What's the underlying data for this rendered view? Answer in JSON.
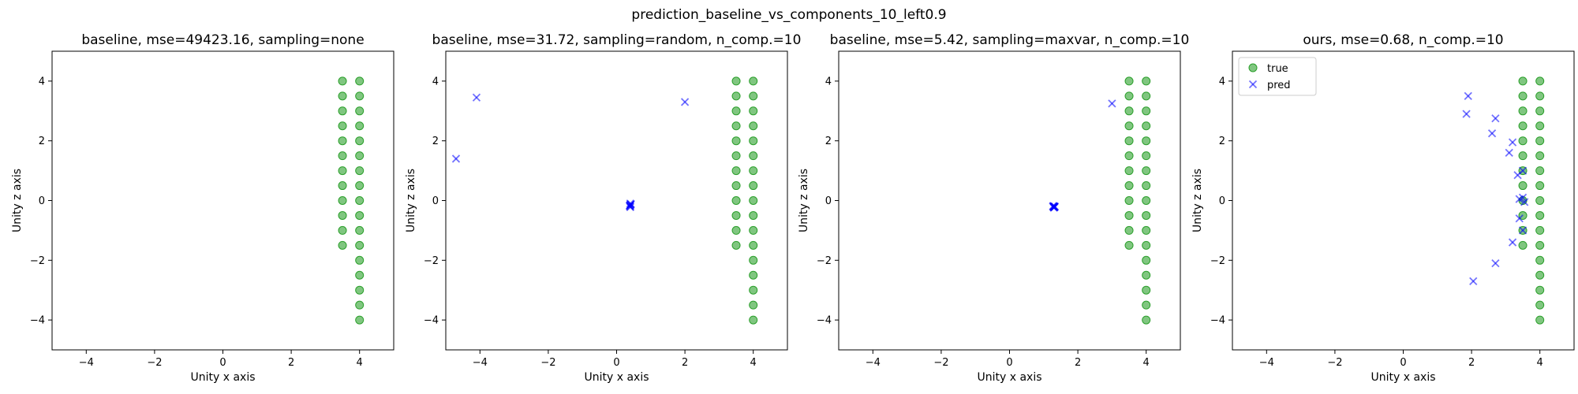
{
  "chart_data": {
    "suptitle": "prediction_baseline_vs_components_10_left0.9",
    "colors": {
      "true": "#2ca02c",
      "pred": "#0000ff"
    },
    "legend": {
      "placement": "upper-left",
      "panel": 3,
      "entries": [
        "true",
        "pred"
      ]
    },
    "panels": [
      {
        "type": "scatter",
        "title": "baseline, mse=49423.16, sampling=none",
        "xlabel": "Unity x axis",
        "ylabel": "Unity z axis",
        "xlim": [
          -5,
          5
        ],
        "ylim": [
          -5,
          5
        ],
        "xticks": [
          -4,
          -2,
          0,
          2,
          4
        ],
        "yticks": [
          -4,
          -2,
          0,
          2,
          4
        ],
        "pred_points": []
      },
      {
        "type": "scatter",
        "title": "baseline, mse=31.72, sampling=random, n_comp.=10",
        "xlabel": "Unity x axis",
        "ylabel": "Unity z axis",
        "xlim": [
          -5,
          5
        ],
        "ylim": [
          -5,
          5
        ],
        "xticks": [
          -4,
          -2,
          0,
          2,
          4
        ],
        "yticks": [
          -4,
          -2,
          0,
          2,
          4
        ],
        "pred_points": [
          [
            -4.1,
            3.45
          ],
          [
            -4.7,
            1.4
          ],
          [
            2.0,
            3.3
          ],
          [
            0.4,
            -0.1
          ],
          [
            0.4,
            -0.15
          ],
          [
            0.4,
            -0.2
          ],
          [
            0.42,
            -0.12
          ],
          [
            0.38,
            -0.18
          ],
          [
            0.4,
            -0.22
          ],
          [
            0.41,
            -0.14
          ],
          [
            0.39,
            -0.16
          ]
        ]
      },
      {
        "type": "scatter",
        "title": "baseline, mse=5.42, sampling=maxvar, n_comp.=10",
        "xlabel": "Unity x axis",
        "ylabel": "Unity z axis",
        "xlim": [
          -5,
          5
        ],
        "ylim": [
          -5,
          5
        ],
        "xticks": [
          -4,
          -2,
          0,
          2,
          4
        ],
        "yticks": [
          -4,
          -2,
          0,
          2,
          4
        ],
        "pred_points": [
          [
            3.0,
            3.25
          ],
          [
            1.3,
            -0.2
          ],
          [
            1.32,
            -0.22
          ],
          [
            1.28,
            -0.18
          ],
          [
            1.3,
            -0.24
          ],
          [
            1.31,
            -0.2
          ],
          [
            1.29,
            -0.21
          ],
          [
            1.3,
            -0.19
          ],
          [
            1.33,
            -0.2
          ],
          [
            1.27,
            -0.2
          ],
          [
            1.3,
            -0.23
          ]
        ]
      },
      {
        "type": "scatter",
        "title": "ours, mse=0.68, n_comp.=10",
        "xlabel": "Unity x axis",
        "ylabel": "Unity z axis",
        "xlim": [
          -5,
          5
        ],
        "ylim": [
          -5,
          5
        ],
        "xticks": [
          -4,
          -2,
          0,
          2,
          4
        ],
        "yticks": [
          -4,
          -2,
          0,
          2,
          4
        ],
        "pred_points": [
          [
            1.9,
            3.5
          ],
          [
            1.85,
            2.9
          ],
          [
            2.7,
            2.75
          ],
          [
            2.6,
            2.25
          ],
          [
            3.2,
            1.95
          ],
          [
            3.1,
            1.6
          ],
          [
            3.5,
            1.0
          ],
          [
            3.35,
            0.85
          ],
          [
            3.4,
            0.05
          ],
          [
            3.55,
            -0.05
          ],
          [
            3.5,
            0.1
          ],
          [
            3.4,
            -0.6
          ],
          [
            3.5,
            -1.0
          ],
          [
            3.2,
            -1.4
          ],
          [
            2.7,
            -2.1
          ],
          [
            2.05,
            -2.7
          ]
        ]
      }
    ],
    "true_points": [
      [
        3.5,
        4.0
      ],
      [
        3.5,
        3.5
      ],
      [
        3.5,
        3.0
      ],
      [
        3.5,
        2.5
      ],
      [
        3.5,
        2.0
      ],
      [
        3.5,
        1.5
      ],
      [
        3.5,
        1.0
      ],
      [
        3.5,
        0.5
      ],
      [
        3.5,
        0.0
      ],
      [
        3.5,
        -0.5
      ],
      [
        3.5,
        -1.0
      ],
      [
        3.5,
        -1.5
      ],
      [
        4.0,
        4.0
      ],
      [
        4.0,
        3.5
      ],
      [
        4.0,
        3.0
      ],
      [
        4.0,
        2.5
      ],
      [
        4.0,
        2.0
      ],
      [
        4.0,
        1.5
      ],
      [
        4.0,
        1.0
      ],
      [
        4.0,
        0.5
      ],
      [
        4.0,
        0.0
      ],
      [
        4.0,
        -0.5
      ],
      [
        4.0,
        -1.0
      ],
      [
        4.0,
        -1.5
      ],
      [
        4.0,
        -2.0
      ],
      [
        4.0,
        -2.5
      ],
      [
        4.0,
        -3.0
      ],
      [
        4.0,
        -3.5
      ],
      [
        4.0,
        -4.0
      ]
    ]
  }
}
